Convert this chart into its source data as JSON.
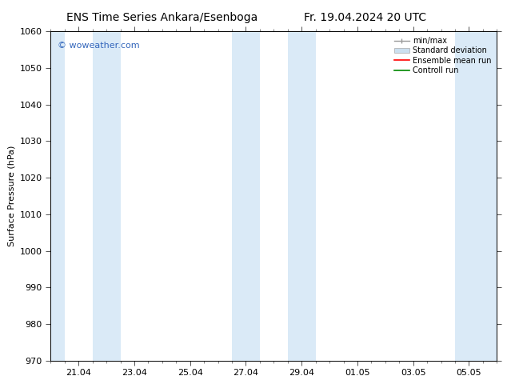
{
  "title_left": "ENS Time Series Ankara/Esenboga",
  "title_right": "Fr. 19.04.2024 20 UTC",
  "ylabel": "Surface Pressure (hPa)",
  "ylim": [
    970,
    1060
  ],
  "yticks": [
    970,
    980,
    990,
    1000,
    1010,
    1020,
    1030,
    1040,
    1050,
    1060
  ],
  "xtick_labels": [
    "21.04",
    "23.04",
    "25.04",
    "27.04",
    "29.04",
    "01.05",
    "03.05",
    "05.05"
  ],
  "xtick_positions": [
    1,
    3,
    5,
    7,
    9,
    11,
    13,
    15
  ],
  "xlim": [
    0,
    16
  ],
  "shaded_bands": [
    {
      "day_start": 0.0,
      "day_end": 0.5,
      "color": "#daeaf7"
    },
    {
      "day_start": 1.5,
      "day_end": 2.5,
      "color": "#daeaf7"
    },
    {
      "day_start": 6.5,
      "day_end": 7.5,
      "color": "#daeaf7"
    },
    {
      "day_start": 8.5,
      "day_end": 9.5,
      "color": "#daeaf7"
    },
    {
      "day_start": 14.5,
      "day_end": 16.0,
      "color": "#daeaf7"
    }
  ],
  "background_color": "#ffffff",
  "plot_bg_color": "#ffffff",
  "watermark_text": "© woweather.com",
  "watermark_color": "#3366bb",
  "legend_items": [
    {
      "label": "min/max",
      "color": "#999999",
      "style": "errorbar"
    },
    {
      "label": "Standard deviation",
      "color": "#cce0f0",
      "style": "fillbar"
    },
    {
      "label": "Ensemble mean run",
      "color": "#ff0000",
      "style": "line"
    },
    {
      "label": "Controll run",
      "color": "#008800",
      "style": "line"
    }
  ],
  "title_fontsize": 10,
  "axis_label_fontsize": 8,
  "tick_fontsize": 8,
  "watermark_fontsize": 8
}
